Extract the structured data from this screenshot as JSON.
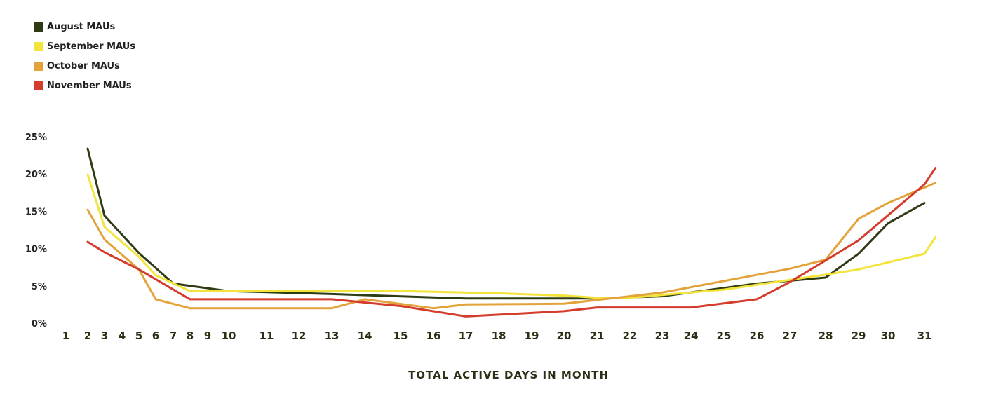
{
  "chart_data": {
    "type": "line",
    "title": "",
    "xlabel": "TOTAL ACTIVE DAYS IN MONTH",
    "ylabel": "",
    "ylim": [
      0,
      25
    ],
    "y_ticks": [
      "0%",
      "5%",
      "10%",
      "15%",
      "20%",
      "25%"
    ],
    "x_ticks": [
      "1",
      "2",
      "3",
      "4",
      "5",
      "6",
      "7",
      "8",
      "9",
      "10",
      "11",
      "12",
      "13",
      "14",
      "15",
      "16",
      "17",
      "18",
      "19",
      "20",
      "21",
      "22",
      "23",
      "24",
      "25",
      "26",
      "27",
      "28",
      "29",
      "30",
      "31"
    ],
    "grid": false,
    "legend_position": "top-left",
    "series": [
      {
        "name": "August MAUs",
        "color": "#2f3b12",
        "points": [
          [
            2,
            23.5
          ],
          [
            3,
            14.5
          ],
          [
            5,
            9.5
          ],
          [
            7,
            5.4
          ],
          [
            10,
            4.4
          ],
          [
            13,
            4.0
          ],
          [
            17,
            3.4
          ],
          [
            21,
            3.4
          ],
          [
            23,
            3.7
          ],
          [
            26,
            5.4
          ],
          [
            28,
            6.2
          ],
          [
            29,
            9.4
          ],
          [
            30,
            13.5
          ],
          [
            31,
            16.2
          ]
        ]
      },
      {
        "name": "September MAUs",
        "color": "#f2e43a",
        "points": [
          [
            2,
            20.0
          ],
          [
            3,
            13.0
          ],
          [
            5,
            9.0
          ],
          [
            6,
            6.5
          ],
          [
            8,
            4.4
          ],
          [
            10,
            4.4
          ],
          [
            13,
            4.4
          ],
          [
            15,
            4.4
          ],
          [
            16,
            4.3
          ],
          [
            18,
            4.1
          ],
          [
            20,
            3.8
          ],
          [
            21,
            3.5
          ],
          [
            22,
            3.5
          ],
          [
            25,
            4.6
          ],
          [
            28,
            6.6
          ],
          [
            29,
            7.3
          ],
          [
            31,
            9.4
          ],
          [
            31.3,
            11.6
          ]
        ]
      },
      {
        "name": "October MAUs",
        "color": "#e3a23a",
        "points": [
          [
            2,
            15.3
          ],
          [
            3,
            11.3
          ],
          [
            5,
            7.3
          ],
          [
            6,
            3.3
          ],
          [
            8,
            2.1
          ],
          [
            13,
            2.1
          ],
          [
            14,
            3.3
          ],
          [
            16,
            2.1
          ],
          [
            17,
            2.6
          ],
          [
            20,
            2.7
          ],
          [
            23,
            4.2
          ],
          [
            27,
            7.4
          ],
          [
            28,
            8.6
          ],
          [
            29,
            14.1
          ],
          [
            30,
            16.2
          ],
          [
            31.3,
            18.9
          ]
        ]
      },
      {
        "name": "November MAUs",
        "color": "#d43c2c",
        "points": [
          [
            2,
            11.0
          ],
          [
            3,
            9.6
          ],
          [
            5,
            7.3
          ],
          [
            7,
            4.6
          ],
          [
            8,
            3.3
          ],
          [
            13,
            3.3
          ],
          [
            15,
            2.4
          ],
          [
            17,
            1.0
          ],
          [
            20,
            1.7
          ],
          [
            21,
            2.2
          ],
          [
            24,
            2.2
          ],
          [
            26,
            3.3
          ],
          [
            27,
            5.6
          ],
          [
            28,
            8.5
          ],
          [
            29,
            11.2
          ],
          [
            31,
            18.7
          ],
          [
            31.3,
            20.9
          ]
        ]
      }
    ]
  }
}
